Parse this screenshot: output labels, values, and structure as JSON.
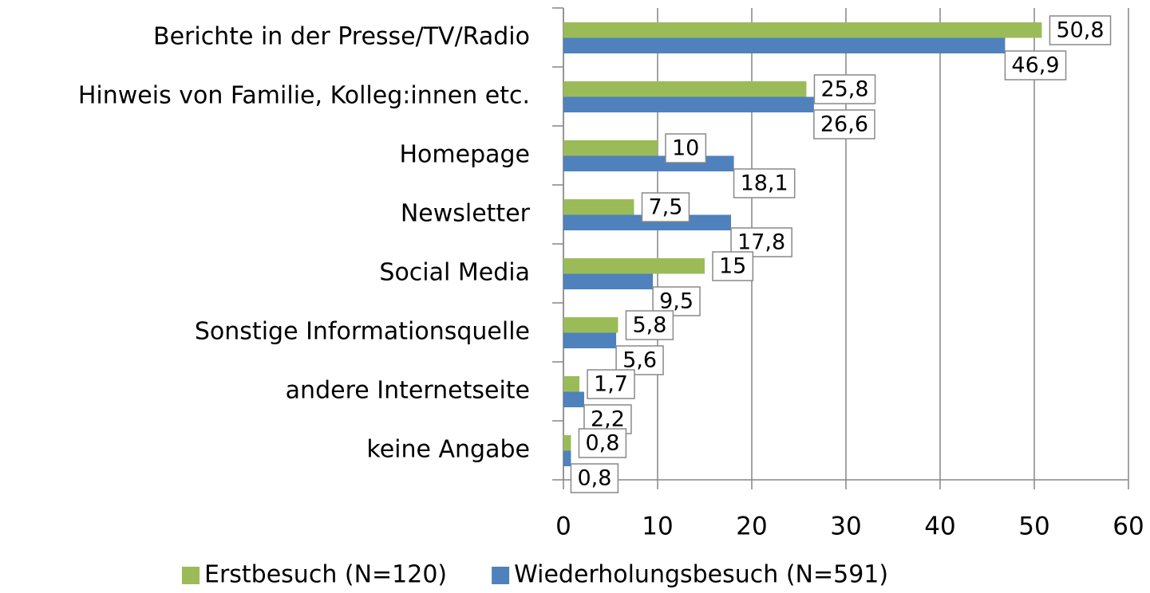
{
  "chart_data": {
    "type": "bar",
    "orientation": "horizontal",
    "categories": [
      "Berichte in der Presse/TV/Radio",
      "Hinweis von Familie, Kolleg:innen etc.",
      "Homepage",
      "Newsletter",
      "Social Media",
      "Sonstige Informationsquelle",
      "andere Internetseite",
      "keine Angabe"
    ],
    "series": [
      {
        "name": "Erstbesuch (N=120)",
        "color": "#9bbb59",
        "values": [
          50.8,
          25.8,
          10,
          7.5,
          15,
          5.8,
          1.7,
          0.8
        ],
        "value_labels": [
          "50,8",
          "25,8",
          "10",
          "7,5",
          "15",
          "5,8",
          "1,7",
          "0,8"
        ]
      },
      {
        "name": "Wiederholungsbesuch (N=591)",
        "color": "#4f81bd",
        "values": [
          46.9,
          26.6,
          18.1,
          17.8,
          9.5,
          5.6,
          2.2,
          0.8
        ],
        "value_labels": [
          "46,9",
          "26,6",
          "18,1",
          "17,8",
          "9,5",
          "5,6",
          "2,2",
          "0,8"
        ]
      }
    ],
    "xlim": [
      0,
      60
    ],
    "xticks": [
      0,
      10,
      20,
      30,
      40,
      50,
      60
    ],
    "grid": true,
    "legend": "bottom"
  }
}
